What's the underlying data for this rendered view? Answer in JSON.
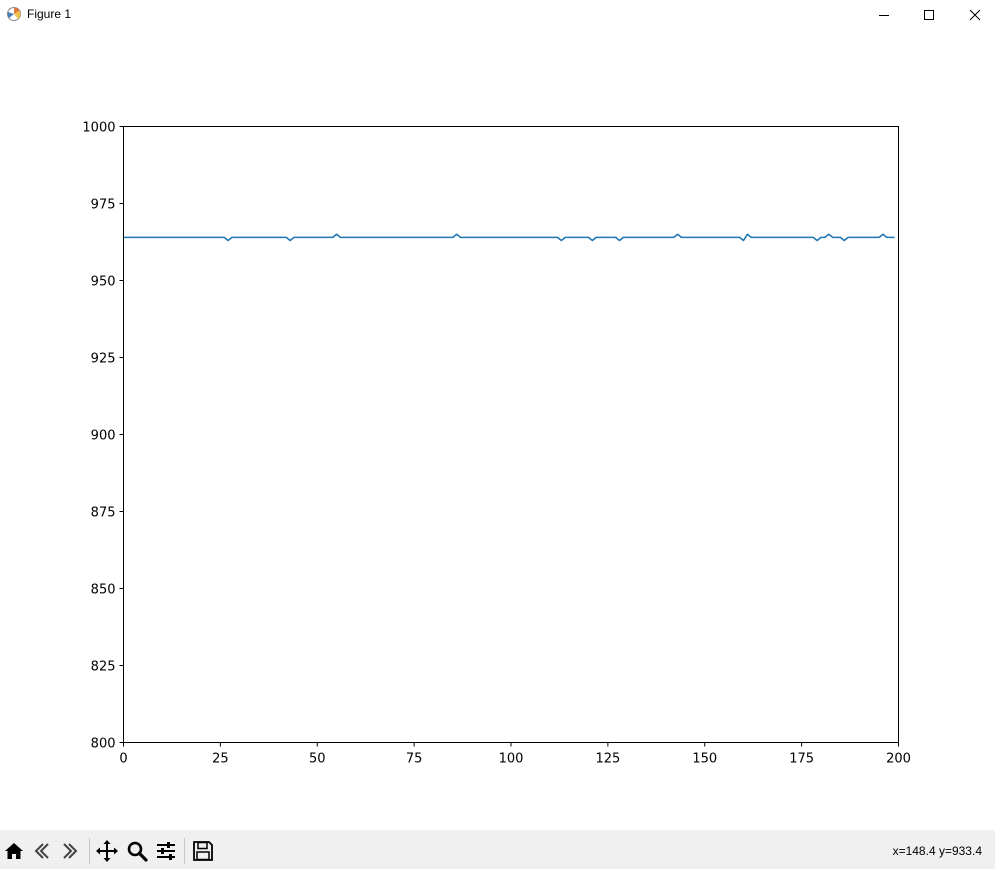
{
  "window": {
    "title": "Figure 1"
  },
  "icons": {
    "app": "matplotlib-logo-icon",
    "minimize": "minimize-icon",
    "maximize": "maximize-icon",
    "close": "close-icon",
    "home": "home-icon",
    "back": "back-arrow-icon",
    "forward": "forward-arrow-icon",
    "pan": "move-icon",
    "zoom": "zoom-icon",
    "configure": "sliders-icon",
    "save": "save-icon"
  },
  "toolbar": {
    "coords": "x=148.4 y=933.4"
  },
  "chart_data": {
    "type": "line",
    "title": "",
    "xlabel": "",
    "ylabel": "",
    "xlim": [
      0,
      200
    ],
    "ylim": [
      800,
      1000
    ],
    "xticks": [
      0,
      25,
      50,
      75,
      100,
      125,
      150,
      175,
      200
    ],
    "yticks": [
      800,
      825,
      850,
      875,
      900,
      925,
      950,
      975,
      1000
    ],
    "grid": false,
    "line_color": "#1f77b4",
    "baseline": 964,
    "x_range": [
      0,
      199
    ],
    "deviations": [
      [
        27,
        963
      ],
      [
        43,
        963
      ],
      [
        55,
        965
      ],
      [
        86,
        965
      ],
      [
        113,
        963
      ],
      [
        121,
        963
      ],
      [
        128,
        963
      ],
      [
        143,
        965
      ],
      [
        160,
        963
      ],
      [
        161,
        965
      ],
      [
        179,
        963
      ],
      [
        182,
        965
      ],
      [
        186,
        963
      ],
      [
        196,
        965
      ]
    ]
  }
}
